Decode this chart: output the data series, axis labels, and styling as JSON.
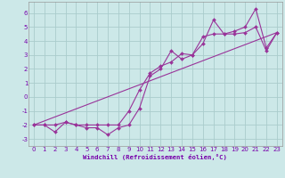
{
  "title": "",
  "xlabel": "Windchill (Refroidissement éolien,°C)",
  "background_color": "#cce8e8",
  "line_color": "#993399",
  "grid_color": "#aacccc",
  "xlim": [
    -0.5,
    23.5
  ],
  "ylim": [
    -3.5,
    6.8
  ],
  "xticks": [
    0,
    1,
    2,
    3,
    4,
    5,
    6,
    7,
    8,
    9,
    10,
    11,
    12,
    13,
    14,
    15,
    16,
    17,
    18,
    19,
    20,
    21,
    22,
    23
  ],
  "yticks": [
    -3,
    -2,
    -1,
    0,
    1,
    2,
    3,
    4,
    5,
    6
  ],
  "series1_x": [
    0,
    1,
    2,
    3,
    4,
    5,
    6,
    7,
    8,
    9,
    10,
    11,
    12,
    13,
    14,
    15,
    16,
    17,
    18,
    19,
    20,
    21,
    22,
    23
  ],
  "series1_y": [
    -2.0,
    -2.0,
    -2.5,
    -1.8,
    -2.0,
    -2.2,
    -2.2,
    -2.7,
    -2.2,
    -2.0,
    -0.8,
    1.5,
    2.0,
    3.3,
    2.7,
    3.0,
    3.8,
    5.5,
    4.5,
    4.7,
    5.0,
    6.3,
    3.5,
    4.6
  ],
  "series2_x": [
    0,
    1,
    2,
    3,
    4,
    5,
    6,
    7,
    8,
    9,
    10,
    11,
    12,
    13,
    14,
    15,
    16,
    17,
    18,
    19,
    20,
    21,
    22,
    23
  ],
  "series2_y": [
    -2.0,
    -2.0,
    -2.0,
    -1.8,
    -2.0,
    -2.0,
    -2.0,
    -2.0,
    -2.0,
    -1.0,
    0.5,
    1.7,
    2.2,
    2.5,
    3.1,
    3.0,
    4.3,
    4.5,
    4.5,
    4.5,
    4.6,
    5.0,
    3.3,
    4.6
  ],
  "series3_x": [
    0,
    23
  ],
  "series3_y": [
    -2.0,
    4.6
  ]
}
